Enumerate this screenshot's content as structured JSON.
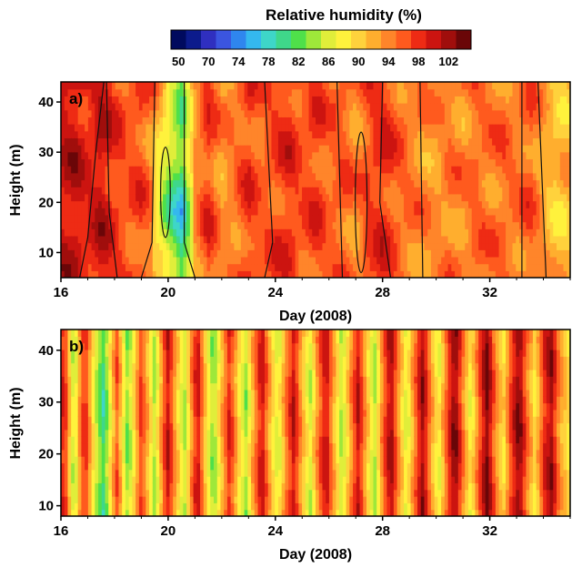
{
  "colorbar": {
    "title": "Relative humidity (%)",
    "tick_labels": [
      "50",
      "70",
      "74",
      "78",
      "82",
      "86",
      "90",
      "94",
      "98",
      "102"
    ],
    "colors": [
      "#000a5e",
      "#0c1b8c",
      "#2f2fc0",
      "#3b55e0",
      "#2f86ee",
      "#34b8ee",
      "#3ed6c8",
      "#3fd78a",
      "#4fe04a",
      "#9ee83a",
      "#e0ee3a",
      "#fff23c",
      "#ffd23c",
      "#ffae2e",
      "#ff852a",
      "#ff5a1e",
      "#ee2b14",
      "#cc1410",
      "#a00e0c",
      "#6a0608"
    ]
  },
  "chart_data": [
    {
      "type": "heatmap",
      "panel_label": "a)",
      "xlabel": "Day (2008)",
      "ylabel": "Height (m)",
      "xlim": [
        16,
        35
      ],
      "ylim": [
        5,
        44
      ],
      "xticks": [
        16,
        20,
        24,
        28,
        32
      ],
      "yticks": [
        10,
        20,
        30,
        40
      ],
      "value_unit": "Relative humidity (%)",
      "color_range": [
        50,
        104
      ],
      "contour_lines": true,
      "day_profile": [
        [
          16.0,
          97
        ],
        [
          16.5,
          98
        ],
        [
          17.0,
          95
        ],
        [
          17.5,
          98
        ],
        [
          18.0,
          94
        ],
        [
          18.5,
          92
        ],
        [
          19.0,
          93
        ],
        [
          19.5,
          88
        ],
        [
          20.0,
          80
        ],
        [
          20.5,
          74
        ],
        [
          21.0,
          88
        ],
        [
          21.5,
          94
        ],
        [
          22.0,
          88
        ],
        [
          22.5,
          90
        ],
        [
          23.0,
          94
        ],
        [
          23.5,
          91
        ],
        [
          24.0,
          93
        ],
        [
          24.5,
          95
        ],
        [
          25.0,
          92
        ],
        [
          25.5,
          94
        ],
        [
          26.0,
          91
        ],
        [
          26.5,
          92
        ],
        [
          27.0,
          89
        ],
        [
          27.5,
          93
        ],
        [
          28.0,
          95
        ],
        [
          28.5,
          92
        ],
        [
          29.0,
          90
        ],
        [
          29.5,
          89
        ],
        [
          30.0,
          88
        ],
        [
          30.5,
          90
        ],
        [
          31.0,
          89
        ],
        [
          31.5,
          91
        ],
        [
          32.0,
          90
        ],
        [
          32.5,
          91
        ],
        [
          33.0,
          90
        ],
        [
          33.5,
          92
        ],
        [
          34.0,
          87
        ],
        [
          34.5,
          84
        ],
        [
          35.0,
          86
        ]
      ]
    },
    {
      "type": "heatmap",
      "panel_label": "b)",
      "xlabel": "Day (2008)",
      "ylabel": "Height (m)",
      "xlim": [
        16,
        35
      ],
      "ylim": [
        8,
        44
      ],
      "xticks": [
        16,
        20,
        24,
        28,
        32
      ],
      "yticks": [
        10,
        20,
        30,
        40
      ],
      "value_unit": "Relative humidity (%)",
      "color_range": [
        50,
        104
      ],
      "contour_lines": false,
      "day_profile": [
        [
          16.0,
          90
        ],
        [
          16.1,
          98
        ],
        [
          16.3,
          86
        ],
        [
          16.5,
          76
        ],
        [
          16.7,
          88
        ],
        [
          16.9,
          96
        ],
        [
          17.1,
          86
        ],
        [
          17.3,
          78
        ],
        [
          17.6,
          70
        ],
        [
          17.9,
          84
        ],
        [
          18.1,
          92
        ],
        [
          18.3,
          82
        ],
        [
          18.5,
          74
        ],
        [
          18.8,
          86
        ],
        [
          19.0,
          94
        ],
        [
          19.3,
          84
        ],
        [
          19.5,
          76
        ],
        [
          19.8,
          90
        ],
        [
          20.0,
          98
        ],
        [
          20.3,
          86
        ],
        [
          20.6,
          76
        ],
        [
          20.9,
          90
        ],
        [
          21.1,
          98
        ],
        [
          21.4,
          84
        ],
        [
          21.7,
          74
        ],
        [
          22.0,
          86
        ],
        [
          22.3,
          96
        ],
        [
          22.6,
          84
        ],
        [
          22.9,
          76
        ],
        [
          23.2,
          88
        ],
        [
          23.5,
          98
        ],
        [
          23.8,
          86
        ],
        [
          24.1,
          78
        ],
        [
          24.4,
          90
        ],
        [
          24.7,
          98
        ],
        [
          25.0,
          86
        ],
        [
          25.3,
          78
        ],
        [
          25.6,
          90
        ],
        [
          25.9,
          98
        ],
        [
          26.2,
          86
        ],
        [
          26.5,
          76
        ],
        [
          26.8,
          88
        ],
        [
          27.1,
          98
        ],
        [
          27.4,
          86
        ],
        [
          27.7,
          76
        ],
        [
          28.0,
          90
        ],
        [
          28.3,
          100
        ],
        [
          28.6,
          88
        ],
        [
          28.9,
          78
        ],
        [
          29.2,
          90
        ],
        [
          29.5,
          100
        ],
        [
          29.8,
          88
        ],
        [
          30.1,
          80
        ],
        [
          30.4,
          92
        ],
        [
          30.7,
          102
        ],
        [
          31.0,
          90
        ],
        [
          31.3,
          80
        ],
        [
          31.6,
          92
        ],
        [
          31.9,
          102
        ],
        [
          32.2,
          90
        ],
        [
          32.5,
          82
        ],
        [
          32.8,
          94
        ],
        [
          33.1,
          102
        ],
        [
          33.4,
          90
        ],
        [
          33.7,
          82
        ],
        [
          34.0,
          94
        ],
        [
          34.3,
          100
        ],
        [
          34.6,
          88
        ],
        [
          35.0,
          82
        ]
      ]
    }
  ]
}
